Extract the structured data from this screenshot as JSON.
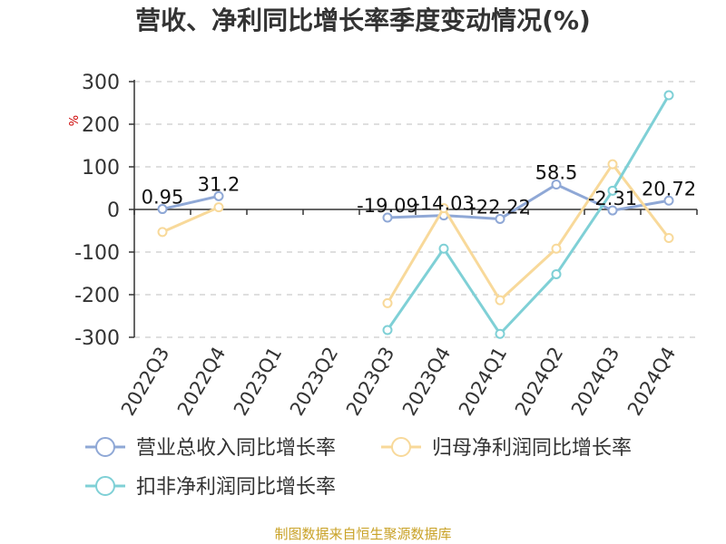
{
  "chart_data": {
    "type": "line",
    "title": "营收、净利同比增长率季度变动情况(%)",
    "yunit": "%",
    "ylim": [
      -300,
      300
    ],
    "yticks": [
      300,
      200,
      100,
      0,
      -100,
      -200,
      -300
    ],
    "grid": true,
    "legend_position": "bottom",
    "categories": [
      "2022Q3",
      "2022Q4",
      "2023Q1",
      "2023Q2",
      "2023Q3",
      "2023Q4",
      "2024Q1",
      "2024Q2",
      "2024Q3",
      "2024Q4"
    ],
    "series": [
      {
        "name": "营业总收入同比增长率",
        "color": "#8fa8d6",
        "values": [
          0.95,
          31.2,
          null,
          null,
          -19.09,
          -14.03,
          -22.22,
          58.5,
          -2.31,
          20.72
        ],
        "data_labels": [
          "0.95",
          "31.2",
          null,
          null,
          "-19.09",
          "-14.03",
          "-22.22",
          "58.5",
          "-2.31",
          "20.72"
        ]
      },
      {
        "name": "归母净利润同比增长率",
        "color": "#f8d99a",
        "values": [
          -53,
          5,
          null,
          null,
          -220,
          3,
          -213,
          -92,
          106,
          -67
        ],
        "data_labels": []
      },
      {
        "name": "扣非净利润同比增长率",
        "color": "#7fd0d6",
        "values": [
          null,
          null,
          null,
          null,
          -283,
          -92,
          -292,
          -152,
          44,
          268
        ],
        "data_labels": []
      }
    ]
  },
  "source": "制图数据来自恒生聚源数据库",
  "source_color": "#c9a227",
  "unit_color": "#cc0000"
}
